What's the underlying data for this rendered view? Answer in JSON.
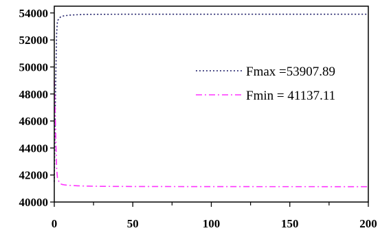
{
  "chart_data": {
    "type": "line",
    "title": "",
    "xlabel": "",
    "ylabel": "",
    "xlim": [
      0,
      200
    ],
    "ylim": [
      40000,
      54500
    ],
    "x_ticks": [
      0,
      50,
      100,
      150,
      200
    ],
    "y_ticks": [
      40000,
      42000,
      44000,
      46000,
      48000,
      50000,
      52000,
      54000
    ],
    "grid": false,
    "legend_position": "right",
    "series": [
      {
        "name": "Fmax =53907.89",
        "color": "#1a1a66",
        "style": "dotted",
        "x": [
          0,
          0.5,
          1,
          1.5,
          2,
          3,
          4,
          5,
          7,
          10,
          15,
          20,
          30,
          50,
          100,
          150,
          200
        ],
        "y": [
          41500,
          46000,
          49500,
          52500,
          53400,
          53600,
          53700,
          53760,
          53800,
          53840,
          53870,
          53890,
          53900,
          53905,
          53907,
          53907.5,
          53907.89
        ]
      },
      {
        "name": "Fmin = 41137.11",
        "color": "#ff33ff",
        "style": "dashdot",
        "x": [
          0,
          0.5,
          1,
          1.5,
          2,
          3,
          4,
          5,
          7,
          10,
          15,
          20,
          30,
          50,
          100,
          150,
          200
        ],
        "y": [
          49000,
          47000,
          44500,
          42500,
          41800,
          41500,
          41350,
          41300,
          41260,
          41230,
          41200,
          41180,
          41160,
          41150,
          41140,
          41138,
          41137.11
        ]
      }
    ]
  }
}
